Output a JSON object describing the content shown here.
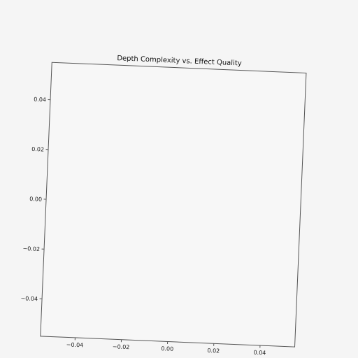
{
  "chart_data": {
    "type": "scatter",
    "title": "Depth Complexity vs. Effect Quality",
    "xlabel": "",
    "ylabel": "",
    "xlim": [
      -0.055,
      0.055
    ],
    "ylim": [
      -0.055,
      0.055
    ],
    "x_ticks": [
      -0.04,
      -0.02,
      0.0,
      0.02,
      0.04
    ],
    "x_tick_labels": [
      "−0.04",
      "−0.02",
      "0.00",
      "0.02",
      "0.04"
    ],
    "y_ticks": [
      -0.04,
      -0.02,
      0.0,
      0.02,
      0.04
    ],
    "y_tick_labels": [
      "−0.04",
      "−0.02",
      "0.00",
      "0.02",
      "0.04"
    ],
    "series": [],
    "grid": false,
    "colors": {
      "background": "#f5f5f5",
      "plot_background": "#f7f7f7",
      "axes": "#555555",
      "text": "#222222"
    }
  }
}
